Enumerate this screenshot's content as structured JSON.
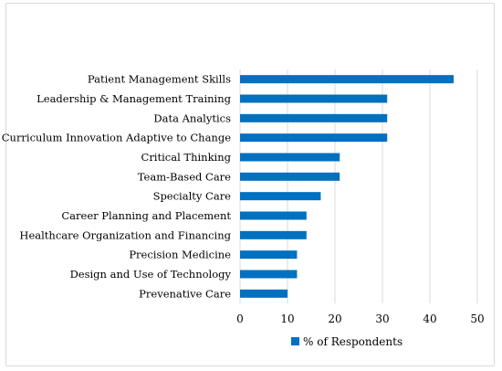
{
  "chart_data": {
    "type": "bar",
    "orientation": "horizontal",
    "categories": [
      "Patient Management Skills",
      "Leadership & Management Training",
      "Data Analytics",
      "Curriculum Innovation Adaptive to Change",
      "Critical Thinking",
      "Team-Based Care",
      "Specialty Care",
      "Career Planning and Placement",
      "Healthcare Organization and Financing",
      "Precision Medicine",
      "Design and Use of Technology",
      "Prevenative Care"
    ],
    "series": [
      {
        "name": "% of Respondents",
        "values": [
          45,
          31,
          31,
          31,
          21,
          21,
          17,
          14,
          14,
          12,
          12,
          10
        ],
        "color": "#0070C0"
      }
    ],
    "xlim": [
      0,
      50
    ],
    "xticks": [
      "0",
      "10",
      "20",
      "30",
      "40",
      "50"
    ],
    "grid": true,
    "legend_position": "bottom"
  }
}
